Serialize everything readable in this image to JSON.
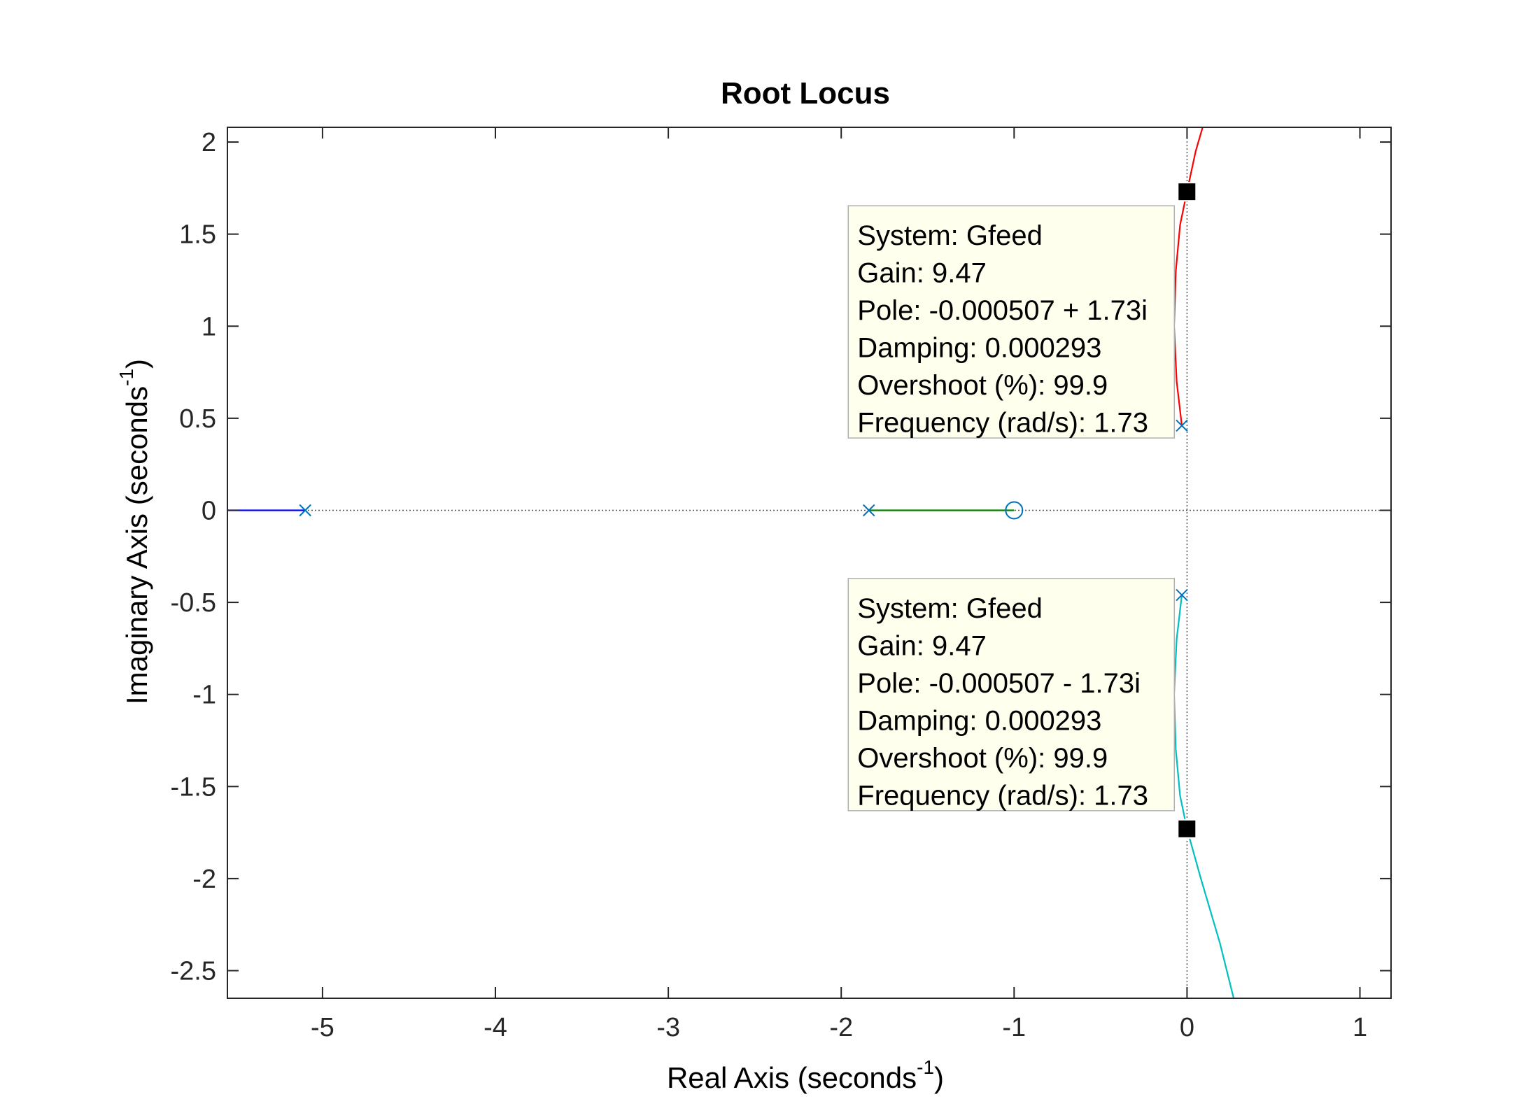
{
  "chart_data": {
    "type": "line",
    "title": "Root Locus",
    "xlabel": {
      "text": "Real Axis (seconds",
      "sup": "-1",
      "close": ")"
    },
    "ylabel": {
      "text": "Imaginary Axis (seconds",
      "sup": "-1",
      "close": ")"
    },
    "xlim": [
      -5.55,
      1.18
    ],
    "ylim": [
      -2.65,
      2.08
    ],
    "xticks": [
      -5,
      -4,
      -3,
      -2,
      -1,
      0,
      1
    ],
    "yticks": [
      2,
      1.5,
      1,
      0.5,
      0,
      -0.5,
      -1,
      -1.5,
      -2,
      -2.5
    ],
    "xtick_labels": [
      "-5",
      "-4",
      "-3",
      "-2",
      "-1",
      "0",
      "1"
    ],
    "ytick_labels": [
      "2",
      "1.5",
      "1",
      "0.5",
      "0",
      "-0.5",
      "-1",
      "-1.5",
      "-2",
      "-2.5"
    ],
    "grid": false,
    "colors": {
      "branch_blue": "#0000ff",
      "branch_green": "#008000",
      "branch_red": "#ff0000",
      "branch_cyan": "#00bfbf",
      "marker": "#0072bd",
      "axes": "#262626",
      "tip_bg": "#ffffee"
    },
    "series": [
      {
        "color": "#0000ff",
        "points": [
          [
            -5.1,
            0
          ],
          [
            -5.55,
            0
          ]
        ]
      },
      {
        "color": "#008000",
        "points": [
          [
            -1.84,
            0
          ],
          [
            -1.0,
            0
          ]
        ]
      },
      {
        "color": "#ff0000",
        "points": [
          [
            -0.03,
            0.46
          ],
          [
            -0.06,
            0.7
          ],
          [
            -0.075,
            1.0
          ],
          [
            -0.065,
            1.3
          ],
          [
            -0.04,
            1.55
          ],
          [
            -0.0005,
            1.73
          ],
          [
            0.05,
            1.95
          ],
          [
            0.09,
            2.08
          ]
        ]
      },
      {
        "color": "#00bfbf",
        "points": [
          [
            -0.03,
            -0.46
          ],
          [
            -0.06,
            -0.7
          ],
          [
            -0.075,
            -1.0
          ],
          [
            -0.065,
            -1.3
          ],
          [
            -0.04,
            -1.55
          ],
          [
            -0.0005,
            -1.73
          ],
          [
            0.08,
            -2.0
          ],
          [
            0.19,
            -2.35
          ],
          [
            0.27,
            -2.65
          ]
        ]
      }
    ],
    "poles": [
      [
        -5.1,
        0
      ],
      [
        -1.84,
        0
      ],
      [
        -0.03,
        0.46
      ],
      [
        -0.03,
        -0.46
      ]
    ],
    "zeros": [
      [
        -1.0,
        0
      ]
    ],
    "selected_points": [
      [
        -0.0005,
        1.73
      ],
      [
        -0.0005,
        -1.73
      ]
    ],
    "datatips": [
      {
        "anchor": [
          -0.0005,
          1.73
        ],
        "lines": [
          "System: Gfeed",
          "Gain: 9.47",
          "Pole: -0.000507 + 1.73i",
          "Damping: 0.000293",
          "Overshoot (%): 99.9",
          "Frequency (rad/s): 1.73"
        ]
      },
      {
        "anchor": [
          -0.0005,
          -1.73
        ],
        "lines": [
          "System: Gfeed",
          "Gain: 9.47",
          "Pole: -0.000507 - 1.73i",
          "Damping: 0.000293",
          "Overshoot (%): 99.9",
          "Frequency (rad/s): 1.73"
        ]
      }
    ]
  }
}
